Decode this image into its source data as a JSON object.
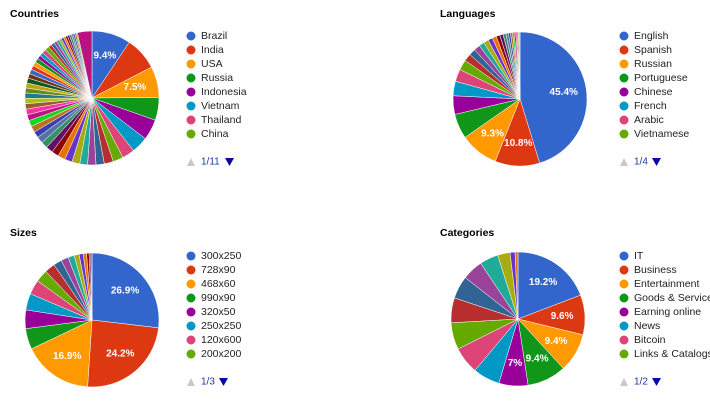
{
  "chart_data": [
    {
      "type": "pie",
      "title": "Countries",
      "categories": [
        "Brazil",
        "India",
        "USA",
        "Russia",
        "Indonesia",
        "Vietnam",
        "Thailand",
        "China",
        null,
        null,
        null,
        null,
        null,
        null,
        null,
        null,
        null,
        null,
        null,
        null,
        null,
        null,
        null,
        null,
        null,
        null,
        null,
        null,
        null,
        null,
        null,
        null,
        null,
        null,
        null,
        null,
        null,
        null,
        null,
        null,
        null,
        null,
        null,
        null,
        null,
        null,
        null,
        null,
        null,
        null,
        null,
        null,
        null,
        null
      ],
      "values": [
        9.4,
        8,
        7.5,
        5.5,
        5,
        4,
        3,
        2.5,
        2.2,
        2,
        2,
        1.9,
        1.9,
        1.8,
        1.8,
        1.7,
        1.7,
        1.6,
        1.6,
        1.5,
        1.5,
        1.5,
        1.4,
        1.4,
        1.3,
        1.3,
        1.3,
        1.2,
        1.2,
        1.2,
        1.1,
        1.1,
        1,
        1,
        1,
        0.9,
        0.9,
        1,
        1,
        0.8,
        0.8,
        0.7,
        0.7,
        0.6,
        0.6,
        0.5,
        0.5,
        0.5,
        0.5,
        0.4,
        0.4,
        0.4,
        0.3,
        3.5
      ],
      "value_labels": [
        "9.4%",
        null,
        "7.5%",
        null,
        null,
        null,
        null,
        null,
        null,
        null,
        null,
        null,
        null,
        null,
        null,
        null,
        null,
        null,
        null,
        null,
        null,
        null,
        null,
        null,
        null,
        null,
        null,
        null,
        null,
        null,
        null,
        null,
        null,
        null,
        null,
        null,
        null,
        null,
        null,
        null,
        null,
        null,
        null,
        null,
        null,
        null,
        null,
        null,
        null,
        null,
        null,
        null,
        null,
        null
      ],
      "page": "1/11"
    },
    {
      "type": "pie",
      "title": "Languages",
      "categories": [
        "English",
        "Spanish",
        "Russian",
        "Portuguese",
        "Chinese",
        "French",
        "Arabic",
        "Vietnamese",
        null,
        null,
        null,
        null,
        null,
        null,
        null,
        null,
        null,
        null,
        null,
        null,
        null,
        null,
        null,
        null,
        null,
        null,
        null
      ],
      "values": [
        45.4,
        10.8,
        9.3,
        6,
        4.5,
        3.5,
        3,
        2.5,
        1.8,
        1.6,
        1.5,
        1.3,
        1.2,
        1.1,
        1,
        0.9,
        0.8,
        0.7,
        0.6,
        0.5,
        0.5,
        0.4,
        0.4,
        0.3,
        0.3,
        0.2,
        0.2
      ],
      "value_labels": [
        "45.4%",
        "10.8%",
        "9.3%",
        null,
        null,
        null,
        null,
        null,
        null,
        null,
        null,
        null,
        null,
        null,
        null,
        null,
        null,
        null,
        null,
        null,
        null,
        null,
        null,
        null,
        null,
        null,
        null
      ],
      "page": "1/4"
    },
    {
      "type": "pie",
      "title": "Sizes",
      "categories": [
        "300x250",
        "728x90",
        "468x60",
        "990x90",
        "320x50",
        "250x250",
        "120x600",
        "200x200",
        null,
        null,
        null,
        null,
        null,
        null,
        null,
        null,
        null,
        null
      ],
      "values": [
        26.9,
        24.2,
        16.9,
        5,
        4.5,
        4,
        3.5,
        3,
        2.5,
        2,
        1.8,
        1.5,
        1.2,
        1,
        0.8,
        0.6,
        0.4,
        0.3
      ],
      "value_labels": [
        "26.9%",
        "24.2%",
        "16.9%",
        null,
        null,
        null,
        null,
        null,
        null,
        null,
        null,
        null,
        null,
        null,
        null,
        null,
        null,
        null
      ],
      "page": "1/3"
    },
    {
      "type": "pie",
      "title": "Categories",
      "categories": [
        "IT",
        "Business",
        "Entertainment",
        "Goods & Services",
        "Earning online",
        "News",
        "Bitcoin",
        "Links & Catalogs",
        null,
        null,
        null,
        null,
        null,
        null,
        null
      ],
      "values": [
        19.2,
        9.6,
        9.4,
        9.4,
        7,
        6.5,
        6.5,
        6.5,
        6,
        5.5,
        5,
        4.5,
        3,
        1.2,
        0.7
      ],
      "value_labels": [
        "19.2%",
        "9.6%",
        "9.4%",
        "9.4%",
        "7%",
        null,
        null,
        null,
        null,
        null,
        null,
        null,
        null,
        null,
        null
      ],
      "page": "1/2"
    }
  ],
  "colors": [
    "#3366cc",
    "#dc3912",
    "#ff9900",
    "#109618",
    "#990099",
    "#0099c6",
    "#dd4477",
    "#66aa00",
    "#b82e2e",
    "#316395",
    "#994499",
    "#22aa99",
    "#aaaa11",
    "#6633cc",
    "#e67300",
    "#8b0707",
    "#651067",
    "#329262",
    "#5574a6",
    "#3b3eac",
    "#b77322",
    "#16d620",
    "#b91383",
    "#f4359e",
    "#9c5935",
    "#a9c413",
    "#2a778d",
    "#668d1c",
    "#bea413",
    "#0c5922",
    "#743411"
  ]
}
